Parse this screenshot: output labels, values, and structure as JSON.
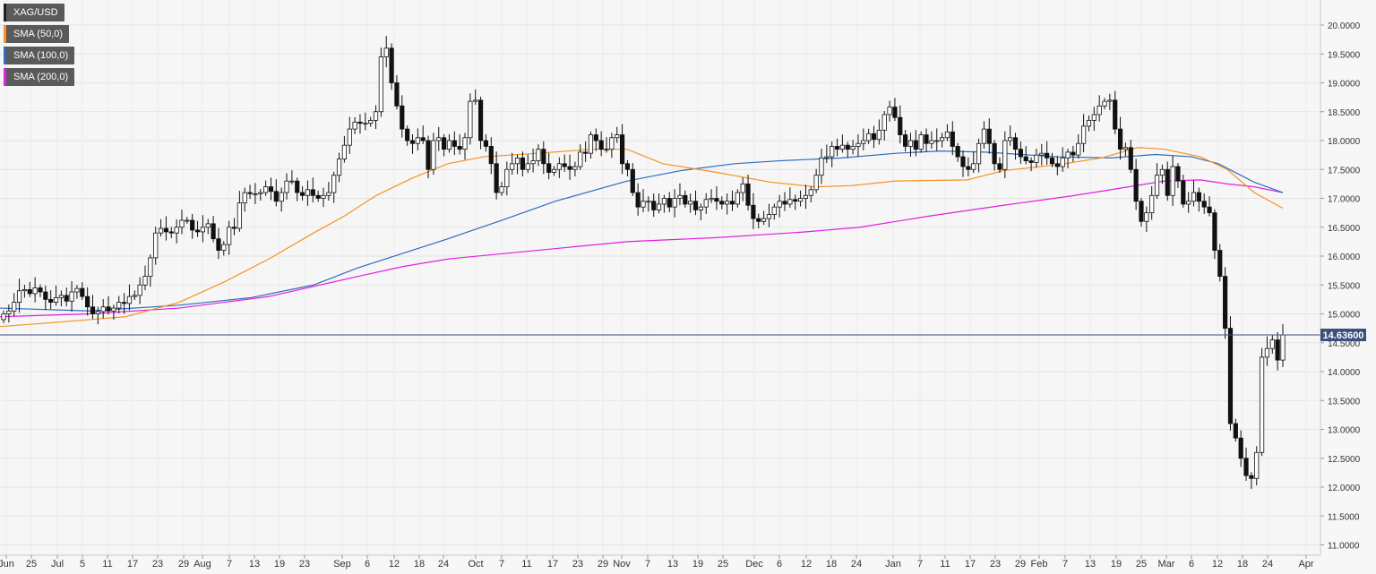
{
  "legend": [
    {
      "label": "XAG/USD",
      "color": "#222222"
    },
    {
      "label": "SMA (50,0)",
      "color": "#f7931e"
    },
    {
      "label": "SMA (100,0)",
      "color": "#2d6bbf"
    },
    {
      "label": "SMA (200,0)",
      "color": "#e020e0"
    }
  ],
  "price_tag": "14.63600",
  "chart_data": {
    "type": "candlestick",
    "symbol": "XAG/USD",
    "ylim": [
      10.85,
      20.35
    ],
    "y_ticks": [
      "11.0000",
      "11.5000",
      "12.0000",
      "12.5000",
      "13.0000",
      "13.5000",
      "14.0000",
      "14.5000",
      "15.0000",
      "15.5000",
      "16.0000",
      "16.5000",
      "17.0000",
      "17.5000",
      "18.0000",
      "18.5000",
      "19.0000",
      "19.5000",
      "20.0000"
    ],
    "x_ticks": [
      "Jun",
      "25",
      "Jul",
      "5",
      "11",
      "17",
      "23",
      "29",
      "Aug",
      "7",
      "13",
      "19",
      "23",
      "Sep",
      "6",
      "12",
      "18",
      "24",
      "Oct",
      "7",
      "11",
      "17",
      "23",
      "29",
      "Nov",
      "7",
      "13",
      "19",
      "25",
      "Dec",
      "6",
      "12",
      "18",
      "24",
      "Jan",
      "7",
      "11",
      "17",
      "23",
      "29",
      "Feb",
      "7",
      "13",
      "19",
      "25",
      "Mar",
      "6",
      "12",
      "18",
      "24",
      "Apr"
    ],
    "last_price": 14.636,
    "candles_close": [
      15.0,
      15.05,
      15.2,
      15.4,
      15.42,
      15.35,
      15.45,
      15.38,
      15.25,
      15.2,
      15.28,
      15.32,
      15.22,
      15.38,
      15.44,
      15.3,
      15.12,
      15.0,
      15.04,
      15.12,
      15.05,
      15.1,
      15.2,
      15.18,
      15.3,
      15.32,
      15.5,
      15.65,
      15.97,
      16.4,
      16.48,
      16.42,
      16.4,
      16.5,
      16.62,
      16.62,
      16.45,
      16.42,
      16.5,
      16.56,
      16.3,
      16.1,
      16.2,
      16.5,
      16.48,
      16.92,
      17.1,
      17.08,
      17.08,
      17.1,
      17.2,
      17.12,
      16.95,
      17.1,
      17.3,
      17.3,
      17.1,
      17.05,
      17.15,
      17.05,
      17.0,
      17.05,
      17.1,
      17.4,
      17.68,
      17.92,
      18.2,
      18.32,
      18.3,
      18.3,
      18.35,
      18.5,
      19.45,
      19.6,
      19.0,
      18.6,
      18.2,
      18.0,
      17.95,
      18.05,
      18.0,
      17.5,
      18.0,
      18.05,
      17.85,
      18.0,
      17.9,
      17.85,
      18.05,
      18.68,
      18.7,
      18.0,
      17.9,
      17.6,
      17.1,
      17.2,
      17.5,
      17.6,
      17.7,
      17.5,
      17.6,
      17.65,
      17.85,
      17.6,
      17.45,
      17.5,
      17.6,
      17.55,
      17.5,
      17.55,
      17.8,
      17.78,
      18.1,
      18.0,
      17.85,
      17.85,
      18.05,
      18.1,
      17.6,
      17.5,
      17.1,
      16.85,
      16.95,
      16.95,
      16.8,
      16.9,
      17.0,
      16.85,
      17.0,
      17.05,
      16.9,
      16.95,
      16.8,
      16.85,
      16.98,
      17.0,
      16.95,
      16.9,
      16.95,
      16.9,
      17.1,
      17.25,
      16.88,
      16.65,
      16.6,
      16.65,
      16.72,
      16.85,
      16.95,
      16.9,
      16.98,
      16.95,
      17.0,
      17.05,
      17.15,
      17.4,
      17.7,
      17.72,
      17.9,
      17.85,
      17.92,
      17.85,
      17.9,
      17.95,
      18.0,
      18.12,
      18.02,
      18.18,
      18.45,
      18.58,
      18.4,
      18.1,
      17.9,
      18.0,
      17.85,
      18.1,
      17.95,
      18.0,
      18.0,
      18.05,
      18.15,
      17.9,
      17.72,
      17.55,
      17.5,
      17.6,
      17.95,
      18.2,
      17.95,
      17.6,
      17.5,
      18.0,
      18.05,
      17.85,
      17.72,
      17.65,
      17.62,
      17.75,
      17.78,
      17.7,
      17.6,
      17.55,
      17.7,
      17.8,
      17.75,
      17.95,
      18.25,
      18.35,
      18.45,
      18.6,
      18.68,
      18.7,
      18.2,
      17.85,
      17.88,
      17.5,
      16.95,
      16.6,
      16.75,
      17.05,
      17.4,
      17.5,
      17.05,
      17.55,
      17.3,
      16.9,
      16.95,
      17.1,
      16.95,
      16.85,
      16.75,
      16.1,
      15.65,
      14.75,
      13.1,
      12.85,
      12.5,
      12.2,
      12.15,
      12.6,
      14.25,
      14.4,
      14.55,
      14.2,
      14.636
    ]
  }
}
